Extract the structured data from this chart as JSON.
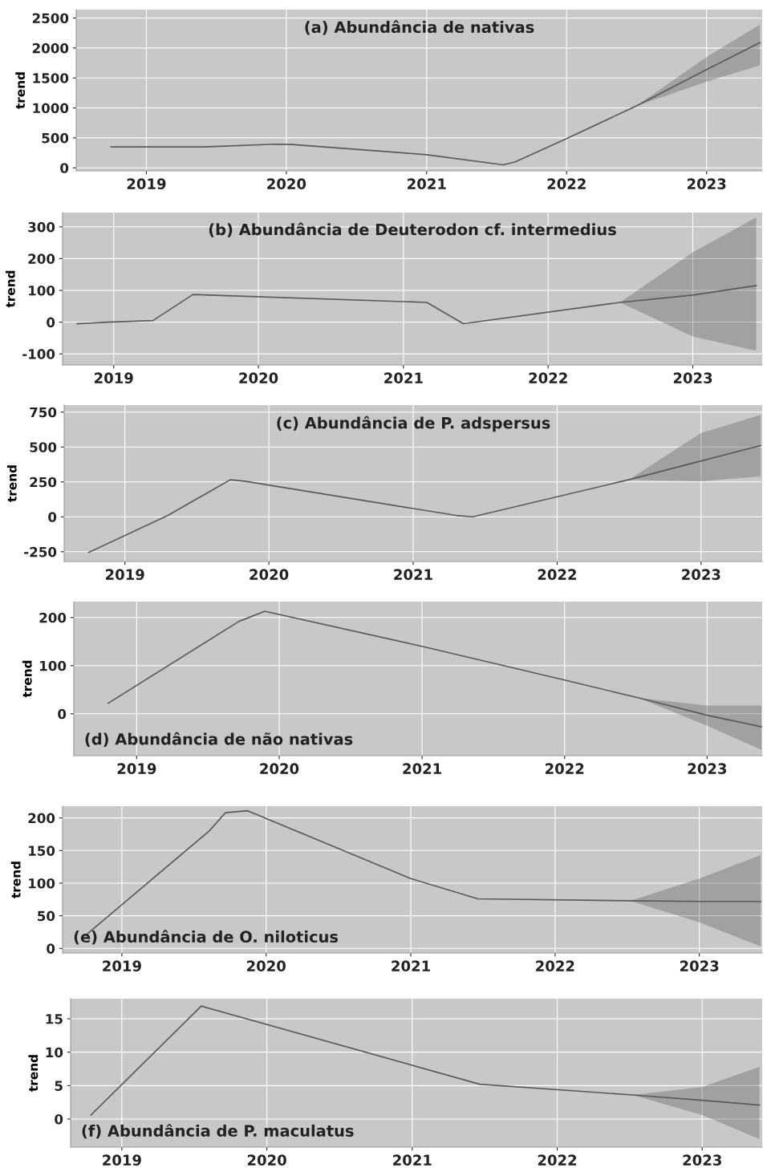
{
  "chart_data": [
    {
      "type": "line",
      "title": "(a) Abundância de nativas",
      "ylabel": "trend",
      "grid": true,
      "line_style": "solid",
      "marker": "none",
      "xlim": [
        "2018-07-02",
        "2023-05-26"
      ],
      "ylim": [
        -50,
        2640
      ],
      "yticks": [
        0,
        500,
        1000,
        1500,
        2000,
        2500
      ],
      "xticks": [
        {
          "value": "2019-01-01",
          "label": "2019"
        },
        {
          "value": "2020-01-01",
          "label": "2020"
        },
        {
          "value": "2021-01-01",
          "label": "2021"
        },
        {
          "value": "2022-01-01",
          "label": "2022"
        },
        {
          "value": "2023-01-01",
          "label": "2023"
        }
      ],
      "series": [
        {
          "color": "#5a5a5a",
          "x": [
            "2018-10-01",
            "2019-06-01",
            "2019-12-01",
            "2020-01-15",
            "2021-01-01",
            "2021-07-20",
            "2021-08-20",
            "2022-01-01",
            "2022-07-01",
            "2023-01-01",
            "2023-05-20"
          ],
          "values": [
            350,
            350,
            395,
            390,
            220,
            50,
            100,
            490,
            1030,
            1640,
            2090
          ],
          "lower": [
            null,
            null,
            null,
            null,
            null,
            null,
            null,
            null,
            1030,
            1440,
            1710
          ],
          "upper": [
            null,
            null,
            null,
            null,
            null,
            null,
            null,
            null,
            1030,
            1850,
            2390
          ]
        }
      ]
    },
    {
      "type": "line",
      "title": "(b) Abundância de Deuterodon cf. intermedius",
      "ylabel": "trend",
      "grid": true,
      "line_style": "solid",
      "marker": "none",
      "xlim": [
        "2018-08-25",
        "2023-06-25"
      ],
      "ylim": [
        -135,
        345
      ],
      "yticks": [
        -100,
        0,
        100,
        200,
        300
      ],
      "xticks": [
        {
          "value": "2019-01-01",
          "label": "2019"
        },
        {
          "value": "2020-01-01",
          "label": "2020"
        },
        {
          "value": "2021-01-01",
          "label": "2021"
        },
        {
          "value": "2022-01-01",
          "label": "2022"
        },
        {
          "value": "2023-01-01",
          "label": "2023"
        }
      ],
      "series": [
        {
          "color": "#5a5a5a",
          "x": [
            "2018-10-01",
            "2018-12-15",
            "2019-04-10",
            "2019-07-20",
            "2021-03-01",
            "2021-06-01",
            "2022-07-01",
            "2023-01-01",
            "2023-06-10"
          ],
          "values": [
            -5,
            0,
            5,
            87,
            62,
            -5,
            62,
            85,
            115
          ],
          "lower": [
            null,
            null,
            null,
            null,
            null,
            null,
            62,
            -45,
            -90
          ],
          "upper": [
            null,
            null,
            null,
            null,
            null,
            null,
            62,
            220,
            330
          ]
        }
      ]
    },
    {
      "type": "line",
      "title": "(c) Abundância de P. adspersus",
      "ylabel": "trend",
      "grid": true,
      "line_style": "solid",
      "marker": "none",
      "xlim": [
        "2018-07-31",
        "2023-06-05"
      ],
      "ylim": [
        -320,
        800
      ],
      "yticks": [
        -250,
        0,
        250,
        500,
        750
      ],
      "xticks": [
        {
          "value": "2019-01-01",
          "label": "2019"
        },
        {
          "value": "2020-01-01",
          "label": "2020"
        },
        {
          "value": "2021-01-01",
          "label": "2021"
        },
        {
          "value": "2022-01-01",
          "label": "2022"
        },
        {
          "value": "2023-01-01",
          "label": "2023"
        }
      ],
      "series": [
        {
          "color": "#5a5a5a",
          "x": [
            "2018-10-01",
            "2019-04-20",
            "2019-09-25",
            "2019-11-01",
            "2021-04-20",
            "2021-06-01",
            "2022-07-01",
            "2023-01-01",
            "2023-06-01"
          ],
          "values": [
            -255,
            10,
            265,
            255,
            10,
            0,
            265,
            400,
            510
          ],
          "lower": [
            null,
            null,
            null,
            null,
            null,
            null,
            265,
            255,
            290
          ],
          "upper": [
            null,
            null,
            null,
            null,
            null,
            null,
            265,
            600,
            730
          ]
        }
      ]
    },
    {
      "type": "line",
      "title": "(d) Abundância de não nativas",
      "ylabel": "trend",
      "grid": true,
      "line_style": "solid",
      "marker": "none",
      "xlim": [
        "2018-07-24",
        "2023-05-22"
      ],
      "ylim": [
        -87,
        233
      ],
      "yticks": [
        0,
        100,
        200
      ],
      "xticks": [
        {
          "value": "2019-01-01",
          "label": "2019"
        },
        {
          "value": "2020-01-01",
          "label": "2020"
        },
        {
          "value": "2021-01-01",
          "label": "2021"
        },
        {
          "value": "2022-01-01",
          "label": "2022"
        },
        {
          "value": "2023-01-01",
          "label": "2023"
        }
      ],
      "series": [
        {
          "color": "#5a5a5a",
          "x": [
            "2018-10-20",
            "2019-09-20",
            "2019-11-25",
            "2021-01-01",
            "2022-01-01",
            "2022-07-10",
            "2023-01-01",
            "2023-05-20"
          ],
          "values": [
            22,
            192,
            213,
            140,
            70,
            33,
            -3,
            -27
          ],
          "lower": [
            null,
            null,
            null,
            null,
            null,
            33,
            -25,
            -75
          ],
          "upper": [
            null,
            null,
            null,
            null,
            null,
            33,
            17,
            17
          ]
        }
      ]
    },
    {
      "type": "line",
      "title": "(e) Abundância de O. niloticus",
      "ylabel": "trend",
      "grid": true,
      "line_style": "solid",
      "marker": "none",
      "xlim": [
        "2018-08-04",
        "2023-06-09"
      ],
      "ylim": [
        -7,
        218
      ],
      "yticks": [
        0,
        50,
        100,
        150,
        200
      ],
      "xticks": [
        {
          "value": "2019-01-01",
          "label": "2019"
        },
        {
          "value": "2020-01-01",
          "label": "2020"
        },
        {
          "value": "2021-01-01",
          "label": "2021"
        },
        {
          "value": "2022-01-01",
          "label": "2022"
        },
        {
          "value": "2023-01-01",
          "label": "2023"
        }
      ],
      "series": [
        {
          "color": "#5a5a5a",
          "x": [
            "2018-10-01",
            "2019-08-10",
            "2019-09-20",
            "2019-11-15",
            "2021-01-01",
            "2021-06-20",
            "2022-07-10",
            "2023-01-01",
            "2023-06-05"
          ],
          "values": [
            20,
            180,
            208,
            211,
            107,
            76,
            73,
            72,
            72
          ],
          "lower": [
            null,
            null,
            null,
            null,
            null,
            null,
            73,
            40,
            3
          ],
          "upper": [
            null,
            null,
            null,
            null,
            null,
            null,
            73,
            107,
            143
          ]
        }
      ]
    },
    {
      "type": "line",
      "title": "(f) Abundância de P. maculatus",
      "ylabel": "trend",
      "grid": true,
      "line_style": "solid",
      "marker": "none",
      "xlim": [
        "2018-08-25",
        "2023-06-01"
      ],
      "ylim": [
        -4.2,
        18
      ],
      "yticks": [
        0,
        5,
        10,
        15
      ],
      "xticks": [
        {
          "value": "2019-01-01",
          "label": "2019"
        },
        {
          "value": "2020-01-01",
          "label": "2020"
        },
        {
          "value": "2021-01-01",
          "label": "2021"
        },
        {
          "value": "2022-01-01",
          "label": "2022"
        },
        {
          "value": "2023-01-01",
          "label": "2023"
        }
      ],
      "series": [
        {
          "color": "#5a5a5a",
          "x": [
            "2018-10-15",
            "2019-07-20",
            "2021-06-20",
            "2022-07-10",
            "2023-01-01",
            "2023-05-25"
          ],
          "values": [
            0.6,
            16.9,
            5.2,
            3.6,
            2.8,
            2.1
          ],
          "lower": [
            null,
            null,
            null,
            3.6,
            0.6,
            -3
          ],
          "upper": [
            null,
            null,
            null,
            3.6,
            4.8,
            7.8
          ]
        }
      ]
    }
  ]
}
